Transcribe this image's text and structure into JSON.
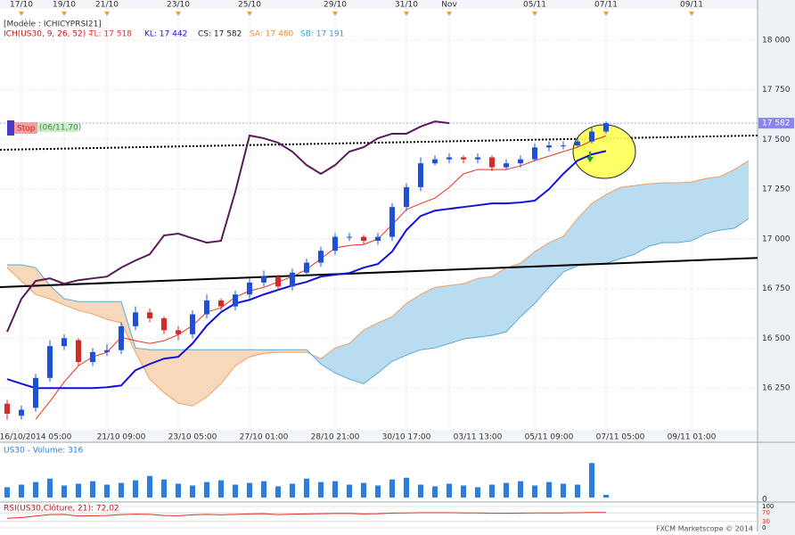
{
  "chart_data": [
    {
      "type": "candlestick",
      "model_label": "[Modèle : ICHICYPRSI21]",
      "indicator_label": "ICH(US30, 9, 26, 52) -",
      "tl_label": "TL: 17 518",
      "kl_label": "KL: 17 442",
      "cs_label": "CS: 17 582",
      "sa_label": "SA: 17 480",
      "sb_label": "SB: 17 191",
      "stop_label": "Stop",
      "order_label": "(06/11,70)",
      "last_price": {
        "value": 17582,
        "label": "17 582"
      },
      "top_categories": [
        null,
        "17/10",
        null,
        null,
        "19/10",
        null,
        null,
        "21/10",
        null,
        null,
        null,
        null,
        "23/10",
        null,
        null,
        null,
        null,
        "25/10",
        null,
        null,
        null,
        null,
        null,
        "29/10",
        null,
        null,
        null,
        null,
        "31/10",
        null,
        null,
        "Nov",
        null,
        null,
        null,
        null,
        null,
        "05/11",
        null,
        null,
        null,
        null,
        "07/11",
        null,
        null,
        null,
        null,
        null,
        "09/11",
        null,
        null,
        null,
        null
      ],
      "categories": [
        null,
        null,
        "16/10/2014 05:00",
        null,
        null,
        null,
        null,
        null,
        "21/10 09:00",
        null,
        null,
        null,
        null,
        "23/10 05:00",
        null,
        null,
        null,
        null,
        "27/10 01:00",
        null,
        null,
        null,
        null,
        "28/10 21:00",
        null,
        null,
        null,
        null,
        "30/10 17:00",
        null,
        null,
        null,
        null,
        "03/11 13:00",
        null,
        null,
        null,
        null,
        "05/11 09:00",
        null,
        null,
        null,
        null,
        "07/11 05:00",
        null,
        null,
        null,
        null,
        "09/11 01:00",
        null,
        null,
        null,
        null
      ],
      "candles": {
        "up_color": "#1f4fd8",
        "down_color": "#d42a2a",
        "open": [
          16170,
          16110,
          16150,
          16300,
          16460,
          16490,
          16380,
          16430,
          16440,
          16560,
          16630,
          16600,
          16540,
          16520,
          16620,
          16690,
          16660,
          16720,
          16780,
          16810,
          16760,
          16830,
          16880,
          16940,
          17010,
          17010,
          16990,
          17010,
          17160,
          17260,
          17380,
          17400,
          17410,
          17400,
          17410,
          17360,
          17380,
          17400,
          17460,
          17470,
          17470,
          17490,
          17540
        ],
        "high": [
          16190,
          16160,
          16320,
          16490,
          16520,
          16500,
          16450,
          16470,
          16580,
          16660,
          16650,
          16610,
          16560,
          16640,
          16720,
          16700,
          16740,
          16800,
          16840,
          16820,
          16850,
          16900,
          16960,
          17030,
          17030,
          17020,
          17030,
          17180,
          17280,
          17410,
          17420,
          17430,
          17420,
          17430,
          17420,
          17400,
          17420,
          17480,
          17490,
          17490,
          17510,
          17560,
          17590
        ],
        "low": [
          16090,
          16090,
          16130,
          16280,
          16440,
          16360,
          16360,
          16410,
          16420,
          16540,
          16580,
          16520,
          16490,
          16500,
          16600,
          16640,
          16640,
          16700,
          16760,
          16740,
          16740,
          16810,
          16860,
          16920,
          16990,
          16970,
          16970,
          16990,
          17140,
          17240,
          17370,
          17380,
          17380,
          17380,
          17340,
          17350,
          17360,
          17390,
          17440,
          17450,
          17460,
          17480,
          17530
        ],
        "close": [
          16120,
          16140,
          16300,
          16460,
          16500,
          16380,
          16430,
          16440,
          16560,
          16630,
          16600,
          16540,
          16520,
          16620,
          16690,
          16660,
          16720,
          16780,
          16810,
          16760,
          16830,
          16880,
          16940,
          17010,
          17010,
          16990,
          17010,
          17160,
          17260,
          17380,
          17400,
          17410,
          17400,
          17410,
          17360,
          17380,
          17400,
          17460,
          17470,
          17470,
          17490,
          17540,
          17582
        ]
      },
      "cloud": {
        "bearish_color": "#f8d8ba",
        "bullish_color": "#b9dcf0",
        "sa_color": "#f0a060",
        "sb_color": "#5aa8d8",
        "sa": [
          16855,
          16788,
          16720,
          16698,
          16667,
          16640,
          16622,
          16595,
          16577,
          16429,
          16294,
          16226,
          16173,
          16159,
          16204,
          16271,
          16361,
          16406,
          16424,
          16429,
          16429,
          16429,
          16397,
          16451,
          16473,
          16541,
          16577,
          16608,
          16675,
          16720,
          16756,
          16765,
          16774,
          16801,
          16810,
          16855,
          16877,
          16936,
          16981,
          17012,
          17102,
          17178,
          17223,
          17259,
          17268,
          17277,
          17282,
          17282,
          17286,
          17304,
          17313,
          17349,
          17394
        ],
        "sb": [
          16869,
          16869,
          16855,
          16765,
          16698,
          16684,
          16684,
          16684,
          16684,
          16451,
          16442,
          16442,
          16442,
          16442,
          16442,
          16442,
          16442,
          16442,
          16442,
          16442,
          16442,
          16442,
          16370,
          16325,
          16294,
          16271,
          16325,
          16384,
          16415,
          16442,
          16451,
          16473,
          16496,
          16505,
          16514,
          16532,
          16608,
          16675,
          16756,
          16833,
          16864,
          16873,
          16877,
          16900,
          16922,
          16963,
          16981,
          16981,
          16990,
          17026,
          17044,
          17053,
          17102
        ]
      },
      "lines": [
        {
          "color": "#e8321e",
          "width": 1,
          "values": [
            null,
            null,
            16092,
            16182,
            16280,
            16361,
            16406,
            16429,
            16505,
            16487,
            16473,
            16487,
            16518,
            16563,
            16631,
            16653,
            16707,
            16738,
            16756,
            16783,
            16810,
            16846,
            16900,
            16954,
            16967,
            16972,
            16999,
            17071,
            17147,
            17178,
            17205,
            17259,
            17327,
            17349,
            17349,
            17349,
            17367,
            17394,
            17416,
            17439,
            17461,
            17493,
            17518,
            null,
            null,
            null,
            null,
            null,
            null,
            null,
            null,
            null,
            null
          ]
        },
        {
          "color": "#1010e0",
          "width": 2,
          "values": [
            16294,
            16271,
            16249,
            16249,
            16249,
            16249,
            16249,
            16253,
            16262,
            16339,
            16370,
            16397,
            16406,
            16473,
            16563,
            16631,
            16675,
            16693,
            16720,
            16743,
            16765,
            16783,
            16810,
            16819,
            16828,
            16855,
            16873,
            16936,
            17044,
            17115,
            17142,
            17151,
            17160,
            17169,
            17178,
            17178,
            17183,
            17192,
            17250,
            17327,
            17394,
            17425,
            17442,
            null,
            null,
            null,
            null,
            null,
            null,
            null,
            null,
            null,
            null
          ]
        },
        {
          "color": "#5a1a5a",
          "width": 2,
          "values": [
            16532,
            16698,
            16788,
            16801,
            16774,
            16792,
            16801,
            16810,
            16855,
            16891,
            16922,
            17017,
            17026,
            17003,
            16981,
            16990,
            17237,
            17520,
            17506,
            17484,
            17439,
            17371,
            17327,
            17371,
            17439,
            17461,
            17506,
            17529,
            17529,
            17565,
            17591,
            17582,
            null,
            null,
            null,
            null,
            null,
            null,
            null,
            null,
            null,
            null,
            null,
            null,
            null,
            null,
            null,
            null,
            null,
            null,
            null,
            null,
            null
          ]
        }
      ],
      "trendlines": [
        {
          "color": "#000000",
          "dash": "none",
          "values": [
            16757,
            16904
          ]
        },
        {
          "color": "#000000",
          "dash": "2,2",
          "values": [
            17448,
            17520
          ]
        }
      ],
      "ylim": [
        16048,
        18157
      ],
      "yticks": [
        {
          "value": 16250,
          "label": "16 250"
        },
        {
          "value": 16500,
          "label": "16 500"
        },
        {
          "value": 16750,
          "label": "16 750"
        },
        {
          "value": 17000,
          "label": "17 000"
        },
        {
          "value": 17250,
          "label": "17 250"
        },
        {
          "value": 17500,
          "label": "17 500"
        },
        {
          "value": 17750,
          "label": "17 750"
        },
        {
          "value": 18000,
          "label": "18 000"
        }
      ],
      "grid": true
    },
    {
      "type": "bar",
      "title": "US30 - Volume: 316",
      "color": "#2a7de1",
      "values": [
        1200,
        1500,
        1800,
        2200,
        1400,
        1600,
        1900,
        1500,
        1700,
        2000,
        2500,
        2100,
        1600,
        1400,
        1800,
        2000,
        1500,
        1700,
        1900,
        1300,
        1600,
        2200,
        1800,
        1900,
        1500,
        1700,
        1400,
        2100,
        2300,
        1500,
        1300,
        1600,
        1400,
        1200,
        1500,
        1700,
        1900,
        1400,
        1800,
        1600,
        1500,
        4000,
        316
      ],
      "ylim": [
        0,
        6000
      ],
      "yticks": [
        0
      ]
    },
    {
      "type": "line",
      "title": "RSI(US30,Clôture, 21): 72,02",
      "color": "#e03020",
      "values": [
        45,
        48,
        55,
        62,
        63,
        55,
        57,
        58,
        62,
        64,
        63,
        58,
        57,
        61,
        63,
        61,
        63,
        65,
        66,
        62,
        64,
        65,
        66,
        67,
        67,
        65,
        66,
        69,
        70,
        71,
        71,
        71,
        70,
        70,
        68,
        68,
        69,
        70,
        70,
        70,
        71,
        72,
        72.02
      ],
      "ylim": [
        0,
        100
      ],
      "yticks": [
        0,
        30,
        70,
        100
      ]
    }
  ]
}
